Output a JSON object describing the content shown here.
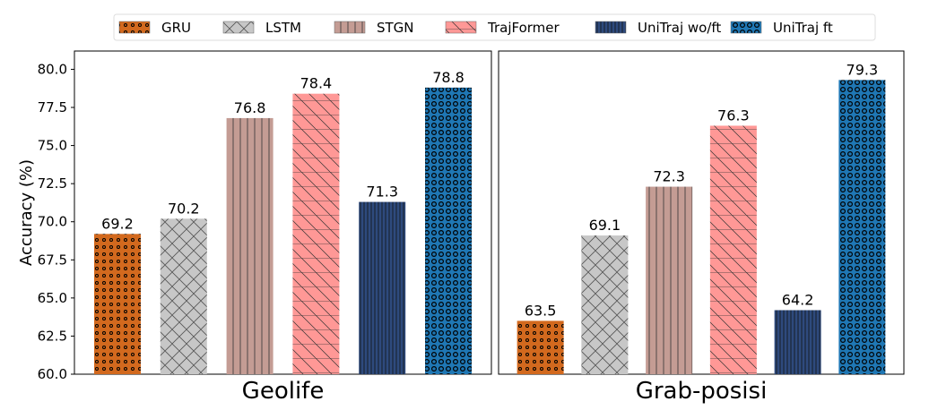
{
  "chart_data": [
    {
      "type": "bar",
      "title": "Geolife",
      "ylabel": "Accuracy (%)",
      "ylim": [
        60,
        81.2
      ],
      "yticks": [
        "60.0",
        "62.5",
        "65.0",
        "67.5",
        "70.0",
        "72.5",
        "75.0",
        "77.5",
        "80.0"
      ],
      "categories": [
        "GRU",
        "LSTM",
        "STGN",
        "TrajFormer",
        "UniTraj wo/ft",
        "UniTraj ft"
      ],
      "values": [
        69.2,
        70.2,
        76.8,
        78.4,
        71.3,
        78.8
      ],
      "labels": [
        "69.2",
        "70.2",
        "76.8",
        "78.4",
        "71.3",
        "78.8"
      ]
    },
    {
      "type": "bar",
      "title": "Grab-posisi",
      "ylim": [
        60,
        81.2
      ],
      "categories": [
        "GRU",
        "LSTM",
        "STGN",
        "TrajFormer",
        "UniTraj wo/ft",
        "UniTraj ft"
      ],
      "values": [
        63.5,
        69.1,
        72.3,
        76.3,
        64.2,
        79.3
      ],
      "labels": [
        "63.5",
        "69.1",
        "72.3",
        "76.3",
        "64.2",
        "79.3"
      ]
    }
  ],
  "legend": {
    "placement": "top",
    "items": [
      {
        "name": "GRU",
        "color": "#d2691e",
        "hatch": "dots"
      },
      {
        "name": "LSTM",
        "color": "#c7c7c7",
        "hatch": "cross"
      },
      {
        "name": "STGN",
        "color": "#c49c94",
        "hatch": "vertical"
      },
      {
        "name": "TrajFormer",
        "color": "#ff9896",
        "hatch": "diagonal"
      },
      {
        "name": "UniTraj wo/ft",
        "color": "#2e4a7d",
        "hatch": "vertical-dense"
      },
      {
        "name": "UniTraj ft",
        "color": "#1f77b4",
        "hatch": "circles"
      }
    ]
  }
}
